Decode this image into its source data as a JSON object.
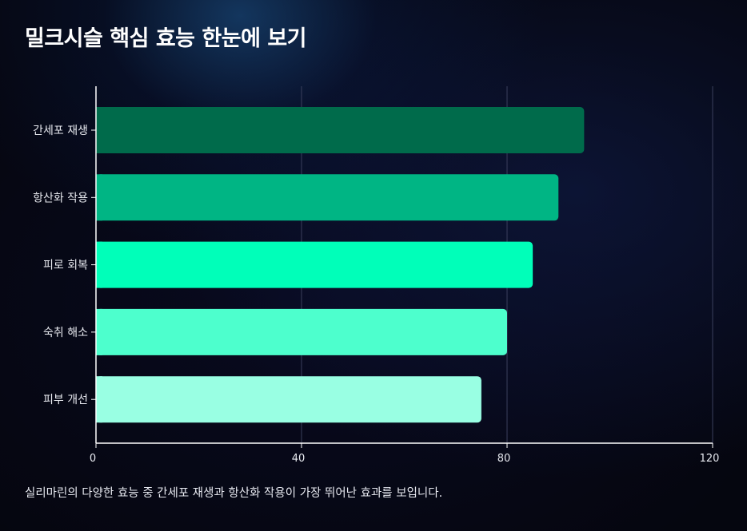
{
  "title": "밀크시슬 핵심 효능 한눈에 보기",
  "caption": "실리마린의 다양한 효능 중 간세포 재생과 항산화 작용이 가장 뛰어난 효과를 보입니다.",
  "colors": {
    "axis": "#ffffff",
    "grid": "#3a3f5c",
    "bars": [
      "#006b4b",
      "#00b584",
      "#00ffb9",
      "#4dffcd",
      "#99ffe3"
    ]
  },
  "chart_data": {
    "type": "bar",
    "orientation": "horizontal",
    "categories": [
      "간세포 재생",
      "항산화 작용",
      "피로 회복",
      "숙취 해소",
      "피부 개선"
    ],
    "values": [
      95,
      90,
      85,
      80,
      75
    ],
    "xlim": [
      0,
      120
    ],
    "xticks": [
      "0",
      "40",
      "80",
      "120"
    ],
    "grid": "vertical",
    "legend": "none"
  }
}
